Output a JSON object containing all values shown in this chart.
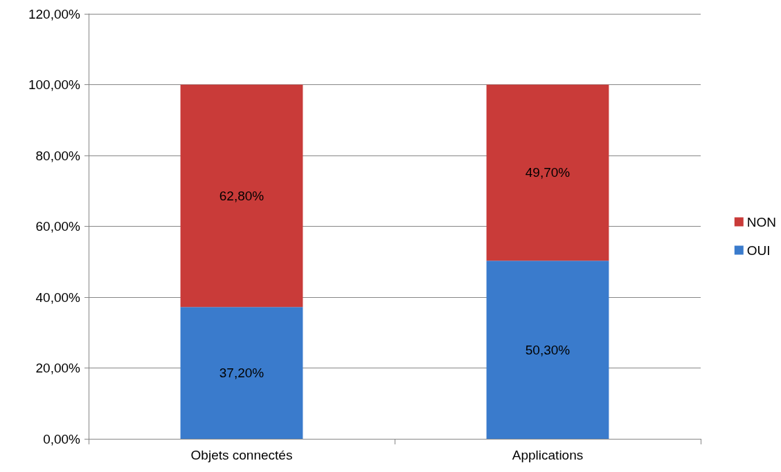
{
  "chart_data": {
    "type": "bar",
    "stacked": true,
    "categories": [
      "Objets connectés",
      "Applications"
    ],
    "series": [
      {
        "name": "OUI",
        "color": "#3a7bcc",
        "values": [
          37.2,
          50.3
        ],
        "value_labels": [
          "37,20%",
          "50,30%"
        ]
      },
      {
        "name": "NON",
        "color": "#c93b39",
        "values": [
          62.8,
          49.7
        ],
        "value_labels": [
          "62,80%",
          "49,70%"
        ]
      }
    ],
    "ylim": [
      0,
      120
    ],
    "yticks": [
      {
        "value": 0,
        "label": "0,00%"
      },
      {
        "value": 20,
        "label": "20,00%"
      },
      {
        "value": 40,
        "label": "40,00%"
      },
      {
        "value": 60,
        "label": "60,00%"
      },
      {
        "value": 80,
        "label": "80,00%"
      },
      {
        "value": 100,
        "label": "100,00%"
      },
      {
        "value": 120,
        "label": "120,00%"
      }
    ],
    "grid": "y",
    "legend": "right"
  }
}
